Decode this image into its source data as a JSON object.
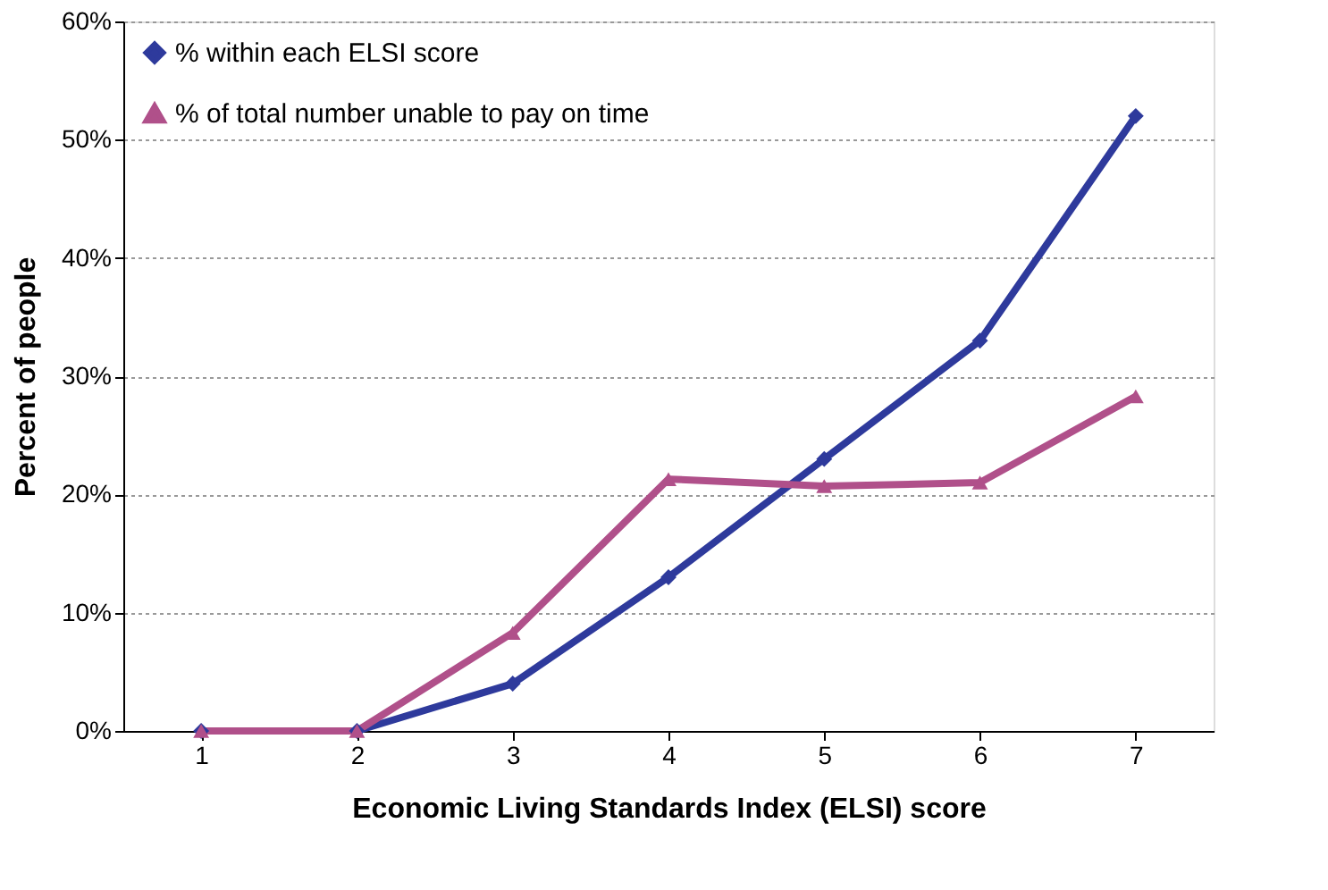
{
  "chart_data": {
    "type": "line",
    "xlabel": "Economic Living Standards Index (ELSI) score",
    "ylabel": "Percent of people",
    "categories": [
      "1",
      "2",
      "3",
      "4",
      "5",
      "6",
      "7"
    ],
    "series": [
      {
        "name": "% within each ELSI score",
        "color": "#2e3a9c",
        "marker": "diamond",
        "values": [
          0,
          0,
          4,
          13,
          23,
          33,
          52
        ]
      },
      {
        "name": "% of total number unable to pay on time",
        "color": "#b0508a",
        "marker": "triangle",
        "values": [
          0,
          0,
          8.3,
          21.3,
          20.7,
          21,
          28.3
        ]
      }
    ],
    "ylim": [
      0,
      60
    ],
    "yticks": [
      {
        "value": 0,
        "label": "0%"
      },
      {
        "value": 10,
        "label": "10%"
      },
      {
        "value": 20,
        "label": "20%"
      },
      {
        "value": 30,
        "label": "30%"
      },
      {
        "value": 40,
        "label": "40%"
      },
      {
        "value": 50,
        "label": "50%"
      },
      {
        "value": 60,
        "label": "60%"
      }
    ],
    "grid": "y",
    "legend": "top left",
    "line_style": "solid"
  }
}
